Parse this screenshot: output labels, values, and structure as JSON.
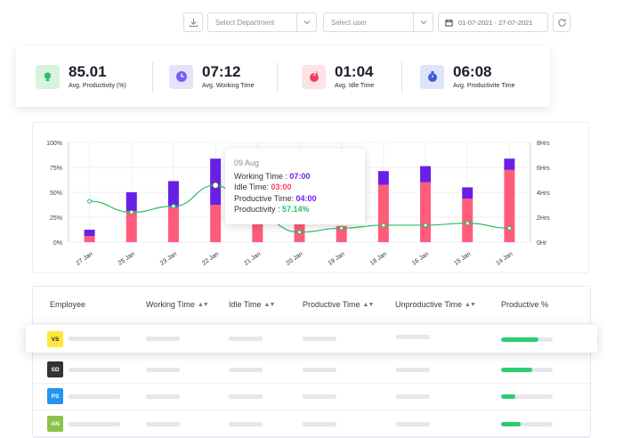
{
  "toolbar": {
    "department_placeholder": "Select Department",
    "user_placeholder": "Select user",
    "date_range": "01-07-2021 - 27-07-2021"
  },
  "stats": [
    {
      "value": "85.01",
      "label": "Avg. Productivity (%)",
      "icon": "bulb-icon",
      "color": "#d8f3e0"
    },
    {
      "value": "07:12",
      "label": "Avg. Working Time",
      "icon": "clock-icon",
      "color": "#e6e2fb"
    },
    {
      "value": "01:04",
      "label": "Avg. Idle Time",
      "icon": "sleep-icon",
      "color": "#fde3e6"
    },
    {
      "value": "06:08",
      "label": "Avg. Productivite Time",
      "icon": "stopwatch-icon",
      "color": "#dfe3fb"
    }
  ],
  "tooltip": {
    "date": "09 Aug",
    "working_label": "Working Time : ",
    "working_value": "07:00",
    "idle_label": "Idle Time: ",
    "idle_value": "03:00",
    "productive_label": "Productive Time: ",
    "productive_value": "04:00",
    "productivity_label": "Productivity : ",
    "productivity_value": "57.14%"
  },
  "chart_data": {
    "type": "bar",
    "categories": [
      "27 Jan",
      "25 Jan",
      "23 Jan",
      "22 Jan",
      "21 Jan",
      "20 Jan",
      "19 Jan",
      "18 Jan",
      "16 Jan",
      "15 Jan",
      "14 Jan"
    ],
    "series": [
      {
        "name": "Productive Time",
        "color": "#ff5c7c",
        "values": [
          0.5,
          2.5,
          2.8,
          3.0,
          1.8,
          1.5,
          1.3,
          4.6,
          4.8,
          3.5,
          5.8
        ]
      },
      {
        "name": "Unproductive Time",
        "color": "#6a1fe8",
        "values": [
          0.5,
          1.5,
          2.1,
          3.7,
          0.0,
          0.0,
          0.0,
          1.1,
          1.3,
          0.9,
          0.9
        ]
      },
      {
        "name": "Productivity",
        "color": "#27c063",
        "values": [
          41,
          30,
          36,
          57,
          25,
          10,
          14,
          17,
          17,
          19,
          14
        ]
      }
    ],
    "y_left_ticks": [
      "0%",
      "25%",
      "50%",
      "75%",
      "100%"
    ],
    "y_right_ticks": [
      "0Hr",
      "2Hrs",
      "4Hrs",
      "6Hrs",
      "8Hrs"
    ],
    "ylim_left": [
      0,
      100
    ],
    "ylim_right": [
      0,
      8
    ]
  },
  "table": {
    "headers": [
      "Employee",
      "Working Time",
      "Idle Time",
      "Productive Time",
      "Unproductive Time",
      "Productive %"
    ],
    "rows": [
      {
        "initials": "VS",
        "color": "#ffe83a",
        "text_color": "#222222",
        "productive_pct": 72
      },
      {
        "initials": "SD",
        "color": "#333333",
        "text_color": "#ffffff",
        "productive_pct": 60
      },
      {
        "initials": "PS",
        "color": "#2196f3",
        "text_color": "#ffffff",
        "productive_pct": 27
      },
      {
        "initials": "AN",
        "color": "#8bc34a",
        "text_color": "#ffffff",
        "productive_pct": 38
      }
    ]
  }
}
